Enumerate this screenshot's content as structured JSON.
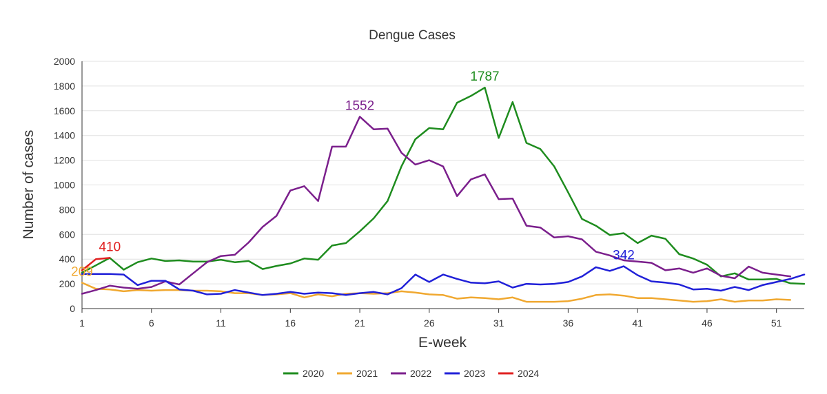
{
  "chart_data": {
    "type": "line",
    "title": "Dengue Cases",
    "xlabel": "E-week",
    "ylabel": "Number of cases",
    "xlim": [
      1,
      53
    ],
    "ylim": [
      0,
      2000
    ],
    "x_ticks": [
      1,
      6,
      11,
      16,
      21,
      26,
      31,
      36,
      41,
      46,
      51
    ],
    "y_ticks": [
      0,
      200,
      400,
      600,
      800,
      1000,
      1200,
      1400,
      1600,
      1800,
      2000
    ],
    "grid": true,
    "legend_position": "bottom-center",
    "series": [
      {
        "name": "2020",
        "color": "#1e8c1e",
        "values": [
          290,
          350,
          410,
          315,
          375,
          405,
          385,
          390,
          380,
          380,
          395,
          375,
          385,
          320,
          345,
          365,
          405,
          395,
          510,
          530,
          625,
          730,
          870,
          1150,
          1370,
          1460,
          1450,
          1665,
          1720,
          1787,
          1380,
          1670,
          1340,
          1290,
          1150,
          940,
          725,
          670,
          595,
          610,
          530,
          590,
          565,
          440,
          405,
          355,
          260,
          285,
          235,
          235,
          240,
          205,
          200
        ]
      },
      {
        "name": "2021",
        "color": "#f0a830",
        "values": [
          209,
          160,
          155,
          140,
          150,
          145,
          150,
          150,
          145,
          145,
          140,
          125,
          125,
          110,
          115,
          125,
          90,
          115,
          100,
          120,
          125,
          120,
          125,
          140,
          130,
          115,
          110,
          80,
          90,
          85,
          75,
          90,
          55,
          55,
          55,
          60,
          80,
          110,
          115,
          105,
          85,
          85,
          75,
          65,
          55,
          60,
          75,
          55,
          65,
          65,
          75,
          70
        ]
      },
      {
        "name": "2022",
        "color": "#7b1f8c",
        "values": [
          120,
          150,
          185,
          170,
          160,
          175,
          220,
          195,
          285,
          375,
          425,
          435,
          535,
          660,
          750,
          955,
          990,
          870,
          1310,
          1310,
          1552,
          1450,
          1455,
          1260,
          1165,
          1200,
          1150,
          910,
          1045,
          1085,
          885,
          890,
          670,
          655,
          575,
          585,
          560,
          460,
          430,
          390,
          380,
          370,
          310,
          325,
          290,
          325,
          265,
          245,
          340,
          290,
          275,
          260
        ]
      },
      {
        "name": "2023",
        "color": "#2020d8",
        "values": [
          280,
          280,
          280,
          275,
          190,
          225,
          225,
          155,
          145,
          115,
          120,
          150,
          130,
          110,
          120,
          135,
          120,
          130,
          125,
          110,
          125,
          135,
          115,
          165,
          275,
          215,
          275,
          240,
          210,
          205,
          220,
          170,
          200,
          195,
          200,
          215,
          260,
          335,
          305,
          342,
          270,
          220,
          210,
          195,
          155,
          160,
          145,
          175,
          150,
          190,
          215,
          240,
          275
        ]
      },
      {
        "name": "2024",
        "color": "#e02020",
        "values": [
          310,
          400,
          410
        ]
      }
    ],
    "annotations": [
      {
        "text": "1787",
        "series": "2020",
        "x": 30,
        "y": 1787
      },
      {
        "text": "1552",
        "series": "2022",
        "x": 21,
        "y": 1552
      },
      {
        "text": "410",
        "series": "2024",
        "x": 3,
        "y": 410
      },
      {
        "text": "209",
        "series": "2021",
        "x": 1,
        "y": 209
      },
      {
        "text": "342",
        "series": "2023",
        "x": 40,
        "y": 342
      }
    ]
  }
}
